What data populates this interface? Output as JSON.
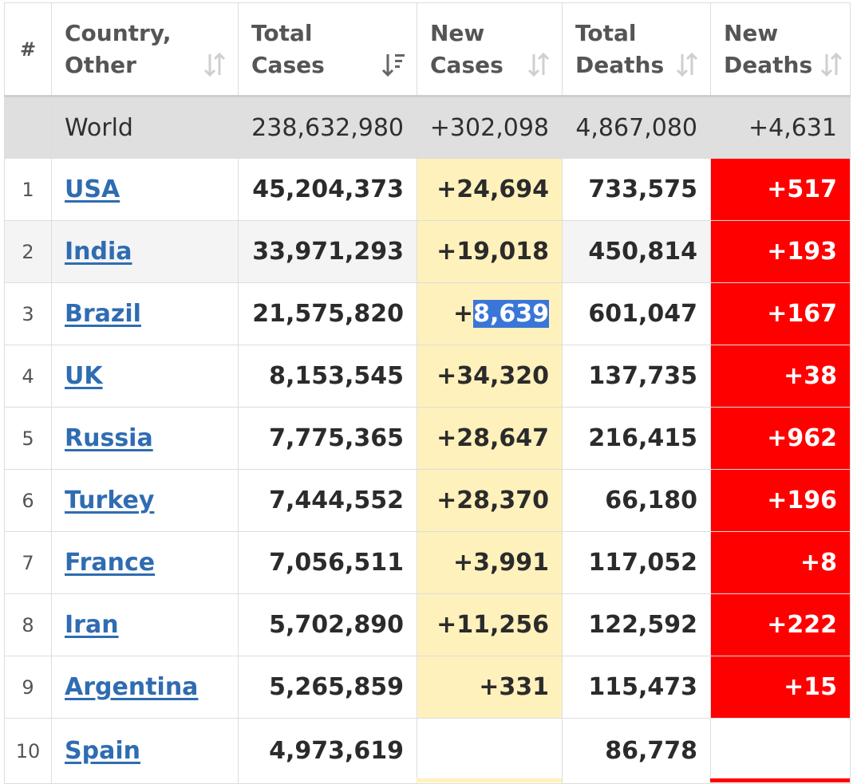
{
  "headers": {
    "rank": "#",
    "country_l1": "Country,",
    "country_l2": "Other",
    "total_cases_l1": "Total",
    "total_cases_l2": "Cases",
    "new_cases_l1": "New",
    "new_cases_l2": "Cases",
    "total_deaths_l1": "Total",
    "total_deaths_l2": "Deaths",
    "new_deaths_l1": "New",
    "new_deaths_l2": "Deaths"
  },
  "world": {
    "country": "World",
    "total_cases": "238,632,980",
    "new_cases": "+302,098",
    "total_deaths": "4,867,080",
    "new_deaths": "+4,631"
  },
  "rows": [
    {
      "rank": "1",
      "country": "USA",
      "total_cases": "45,204,373",
      "new_cases": "+24,694",
      "total_deaths": "733,575",
      "new_deaths": "+517"
    },
    {
      "rank": "2",
      "country": "India",
      "total_cases": "33,971,293",
      "new_cases": "+19,018",
      "total_deaths": "450,814",
      "new_deaths": "+193"
    },
    {
      "rank": "3",
      "country": "Brazil",
      "total_cases": "21,575,820",
      "new_cases_prefix": "+",
      "new_cases_selected": "8,639",
      "total_deaths": "601,047",
      "new_deaths": "+167"
    },
    {
      "rank": "4",
      "country": "UK",
      "total_cases": "8,153,545",
      "new_cases": "+34,320",
      "total_deaths": "137,735",
      "new_deaths": "+38"
    },
    {
      "rank": "5",
      "country": "Russia",
      "total_cases": "7,775,365",
      "new_cases": "+28,647",
      "total_deaths": "216,415",
      "new_deaths": "+962"
    },
    {
      "rank": "6",
      "country": "Turkey",
      "total_cases": "7,444,552",
      "new_cases": "+28,370",
      "total_deaths": "66,180",
      "new_deaths": "+196"
    },
    {
      "rank": "7",
      "country": "France",
      "total_cases": "7,056,511",
      "new_cases": "+3,991",
      "total_deaths": "117,052",
      "new_deaths": "+8"
    },
    {
      "rank": "8",
      "country": "Iran",
      "total_cases": "5,702,890",
      "new_cases": "+11,256",
      "total_deaths": "122,592",
      "new_deaths": "+222"
    },
    {
      "rank": "9",
      "country": "Argentina",
      "total_cases": "5,265,859",
      "new_cases": "+331",
      "total_deaths": "115,473",
      "new_deaths": "+15"
    },
    {
      "rank": "10",
      "country": "Spain",
      "total_cases": "4,973,619",
      "new_cases": "",
      "total_deaths": "86,778",
      "new_deaths": ""
    }
  ],
  "colors": {
    "new_cases_bg": "#fff1bc",
    "new_deaths_bg": "#ff0000",
    "link": "#2f6cb2",
    "world_bg": "#dfdfdf",
    "selection": "#3a76d8"
  },
  "icons": {
    "sort_inactive": "sort-arrows-icon",
    "sort_active_desc": "sort-desc-icon"
  }
}
